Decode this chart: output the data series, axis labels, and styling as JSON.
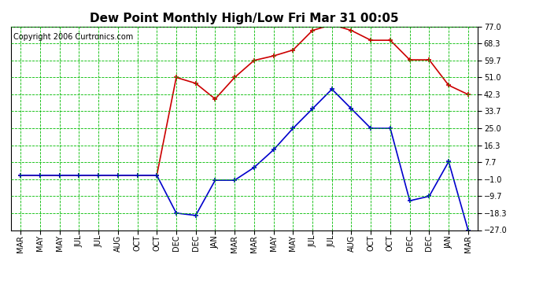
{
  "title": "Dew Point Monthly High/Low Fri Mar 31 00:05",
  "copyright": "Copyright 2006 Curtronics.com",
  "x_labels": [
    "MAR",
    "MAY",
    "MAY",
    "JUL",
    "JUL",
    "AUG",
    "OCT",
    "OCT",
    "DEC",
    "DEC",
    "JAN",
    "MAR",
    "MAR",
    "MAY",
    "MAY",
    "JUL",
    "JUL",
    "AUG",
    "OCT",
    "OCT",
    "DEC",
    "DEC",
    "JAN",
    "MAR"
  ],
  "high_values": [
    1.0,
    1.0,
    1.0,
    1.0,
    1.0,
    1.0,
    1.0,
    1.0,
    51.0,
    48.0,
    40.0,
    51.0,
    59.7,
    62.0,
    65.0,
    75.0,
    78.0,
    75.0,
    70.0,
    70.0,
    60.0,
    60.0,
    47.0,
    42.3
  ],
  "low_values": [
    1.0,
    1.0,
    1.0,
    1.0,
    1.0,
    1.0,
    1.0,
    1.0,
    -18.3,
    -19.5,
    -1.5,
    -1.5,
    5.0,
    14.0,
    25.0,
    35.0,
    45.0,
    35.0,
    25.0,
    25.0,
    -12.0,
    -9.7,
    8.0,
    -27.0
  ],
  "yticks": [
    77.0,
    68.3,
    59.7,
    51.0,
    42.3,
    33.7,
    25.0,
    16.3,
    7.7,
    -1.0,
    -9.7,
    -18.3,
    -27.0
  ],
  "ymin": -27.0,
  "ymax": 77.0,
  "high_color": "#cc0000",
  "low_color": "#0000cc",
  "bg_color": "#ffffff",
  "plot_bg_color": "#ffffff",
  "grid_color": "#00bb00",
  "title_fontsize": 11,
  "axis_label_fontsize": 7,
  "copyright_fontsize": 7,
  "linewidth": 1.2,
  "markersize": 5,
  "markeredgewidth": 1.2
}
